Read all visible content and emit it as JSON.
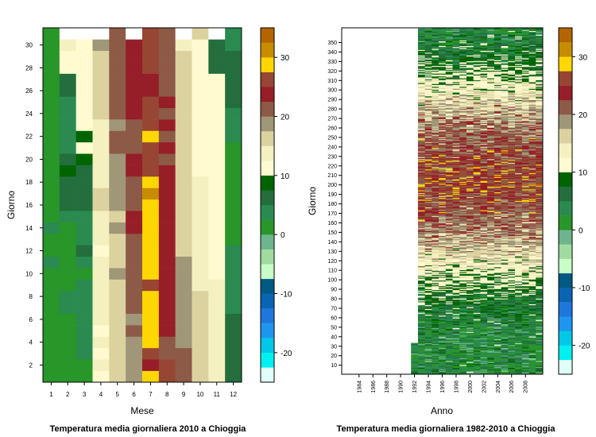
{
  "palette": {
    "breaks": [
      -25,
      -22.5,
      -20,
      -17.5,
      -15,
      -12.5,
      -10,
      -7.5,
      -5,
      -2.5,
      0,
      2.5,
      5,
      7.5,
      10,
      12.5,
      15,
      17.5,
      20,
      22.5,
      25,
      27.5,
      30,
      32.5,
      35
    ],
    "colors": [
      "#e0fff8",
      "#00f0f0",
      "#00c8e6",
      "#1e96f0",
      "#1e78dc",
      "#0a64b4",
      "#005a82",
      "#c8ffc8",
      "#a0dca0",
      "#6eb48c",
      "#289628",
      "#2a8a50",
      "#236e3c",
      "#006400",
      "#fffad0",
      "#f5f0c0",
      "#dcd2a0",
      "#a09678",
      "#8c5a46",
      "#961e28",
      "#964632",
      "#ffd700",
      "#c88c00",
      "#b46400",
      "#ff0000"
    ]
  },
  "chart_data": [
    {
      "type": "heatmap",
      "title": "Temperatura media giornaliera 2010 a Chioggia",
      "xlabel": "Mese",
      "ylabel": "Giorno",
      "x_ticks": [
        1,
        2,
        3,
        4,
        5,
        6,
        7,
        8,
        9,
        10,
        11,
        12
      ],
      "y_ticks": [
        2,
        4,
        6,
        8,
        10,
        12,
        14,
        16,
        18,
        20,
        22,
        24,
        26,
        28,
        30
      ],
      "xlim": [
        0.5,
        12.5
      ],
      "ylim": [
        0.5,
        31.5
      ],
      "colorbar_ticks": [
        -20,
        -10,
        0,
        10,
        20,
        30
      ],
      "month_values": [
        [
          0.5,
          1,
          0.5,
          1,
          0.5,
          1,
          2,
          0.5,
          1,
          2,
          3,
          2,
          2,
          3,
          2,
          1,
          0.5,
          1,
          1,
          1.5,
          2,
          1,
          0.5,
          1,
          2,
          2,
          1,
          1,
          1.5,
          2,
          2
        ],
        [
          0.5,
          1,
          1,
          2,
          2,
          2,
          3,
          3,
          2,
          2,
          2,
          1.5,
          2,
          2,
          3,
          5,
          5,
          7,
          9,
          6,
          3,
          4,
          4,
          4,
          4,
          5,
          5,
          10,
          11,
          13,
          null
        ],
        [
          2,
          2,
          3,
          3,
          4,
          4,
          4,
          4,
          3,
          1,
          4,
          5,
          4,
          3,
          4,
          5,
          6,
          7,
          6,
          9,
          10,
          9,
          10,
          11,
          11,
          12,
          12,
          11,
          10,
          11,
          null
        ],
        [
          12,
          13,
          12,
          13,
          12,
          13,
          13,
          14,
          13,
          14,
          13,
          12,
          13,
          14,
          14,
          15,
          15,
          14,
          13,
          13,
          13,
          14,
          14,
          16,
          16,
          16,
          17,
          17,
          17,
          18,
          null
        ],
        [
          15,
          16,
          16,
          17,
          16,
          17,
          17,
          16,
          17,
          18,
          16,
          17,
          17,
          18,
          17,
          18,
          19,
          19,
          18,
          19,
          20,
          20,
          19,
          20,
          21,
          21,
          22,
          21,
          22,
          21,
          21
        ],
        [
          18,
          18,
          19,
          19,
          20,
          19,
          20,
          20,
          21,
          22,
          21,
          22,
          22,
          23,
          23,
          21,
          21,
          22,
          23,
          23,
          22,
          21,
          22,
          23,
          24,
          24,
          23,
          24,
          24,
          23,
          null
        ],
        [
          27.5,
          24,
          26,
          28,
          29,
          29,
          28,
          28,
          27,
          28,
          29,
          29,
          28,
          29,
          29,
          29,
          30,
          28,
          27,
          27,
          27,
          28,
          27,
          26,
          25,
          24,
          24,
          25,
          25,
          26,
          26
        ],
        [
          25,
          25,
          22,
          22,
          23,
          23,
          24,
          24,
          23,
          23,
          24,
          24,
          23,
          23,
          24,
          24,
          24,
          23,
          23,
          22,
          23,
          22,
          23,
          22,
          23,
          22,
          21,
          20,
          20,
          20,
          20
        ],
        [
          20,
          20,
          20,
          19,
          19,
          19,
          19,
          19,
          19,
          18,
          18,
          17,
          17,
          17,
          17,
          17,
          17,
          17,
          17,
          16,
          16,
          16,
          16,
          16,
          16,
          16,
          15,
          15,
          15,
          14,
          null
        ],
        [
          15,
          16,
          16,
          16,
          16,
          16,
          15,
          15,
          14,
          14,
          14,
          13,
          13,
          13,
          13,
          14,
          13,
          13,
          12,
          12,
          12,
          12,
          12,
          11,
          11,
          11,
          11,
          11,
          12,
          12,
          15
        ],
        [
          14,
          14,
          14,
          14,
          14,
          13,
          13,
          13,
          13,
          12,
          12,
          12,
          12,
          12,
          12,
          12,
          12,
          12,
          11,
          11,
          11,
          11,
          11,
          11,
          11,
          10,
          10,
          7,
          6,
          6,
          null
        ],
        [
          6,
          5,
          5,
          6,
          5,
          5,
          4,
          3,
          4,
          4,
          3,
          3,
          2,
          2,
          2,
          1,
          1,
          0,
          0,
          1,
          2,
          3,
          4,
          4,
          5,
          5,
          5,
          6,
          6,
          4,
          3
        ]
      ]
    },
    {
      "type": "heatmap",
      "title": "Temperatura media giornaliera 1982-2010 a Chioggia",
      "xlabel": "Anno",
      "ylabel": "Giorno",
      "x_ticks": [
        1984,
        1986,
        1988,
        1990,
        1992,
        1994,
        1996,
        1998,
        2000,
        2002,
        2004,
        2006,
        2008
      ],
      "y_ticks": [
        10,
        20,
        30,
        40,
        50,
        60,
        70,
        80,
        90,
        100,
        110,
        120,
        130,
        140,
        150,
        160,
        170,
        180,
        190,
        200,
        210,
        220,
        230,
        240,
        250,
        260,
        270,
        280,
        290,
        300,
        310,
        320,
        330,
        340,
        350
      ],
      "xlim": [
        1981.5,
        2010.5
      ],
      "ylim": [
        0.5,
        365.5
      ],
      "data_start_year": 1992,
      "colorbar_ticks": [
        -20,
        -10,
        0,
        10,
        20,
        30
      ]
    }
  ]
}
